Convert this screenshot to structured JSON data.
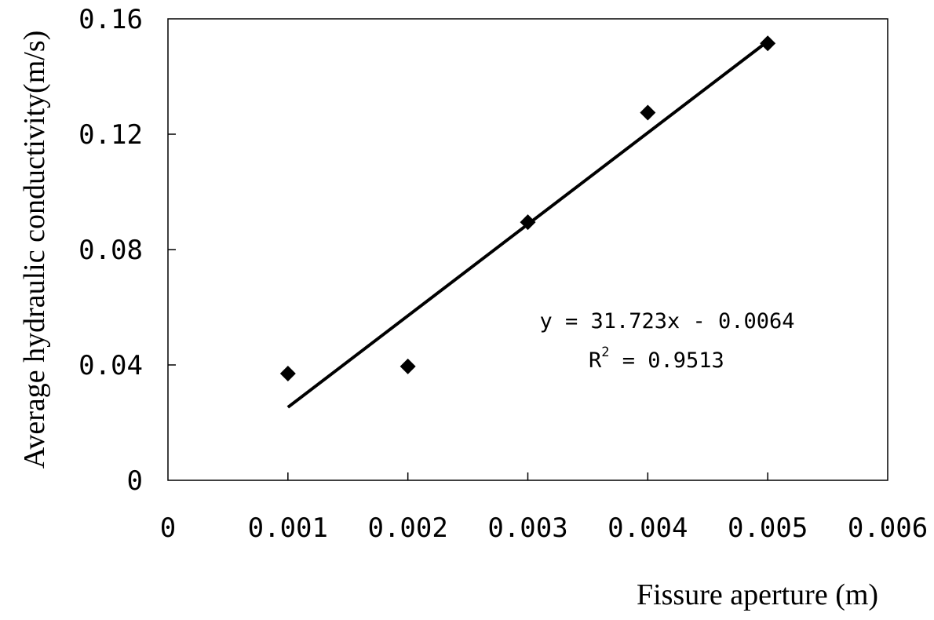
{
  "chart_data": {
    "type": "scatter",
    "title": "",
    "xlabel": "Fissure aperture (m)",
    "ylabel": "Average hydraulic conductivity(m/s)",
    "xlim": [
      0,
      0.006
    ],
    "ylim": [
      0,
      0.16
    ],
    "x_ticks": [
      "0",
      "0.001",
      "0.002",
      "0.003",
      "0.004",
      "0.005",
      "0.006"
    ],
    "y_ticks": [
      "0",
      "0.04",
      "0.08",
      "0.12",
      "0.16"
    ],
    "grid": false,
    "legend": "none",
    "series": [
      {
        "marker": "diamond",
        "color": "#000000",
        "points": [
          {
            "x": 0.001,
            "y": 0.037
          },
          {
            "x": 0.002,
            "y": 0.0395
          },
          {
            "x": 0.003,
            "y": 0.0895
          },
          {
            "x": 0.004,
            "y": 0.1275
          },
          {
            "x": 0.005,
            "y": 0.1515
          }
        ]
      }
    ],
    "trendline": {
      "type": "linear",
      "slope": 31.723,
      "intercept": -0.0064,
      "x_range": [
        0.001,
        0.005
      ],
      "equation": "y = 31.723x - 0.0064",
      "r2_label": "R",
      "r2_superscript": "2",
      "r2_value": " = 0.9513"
    }
  }
}
